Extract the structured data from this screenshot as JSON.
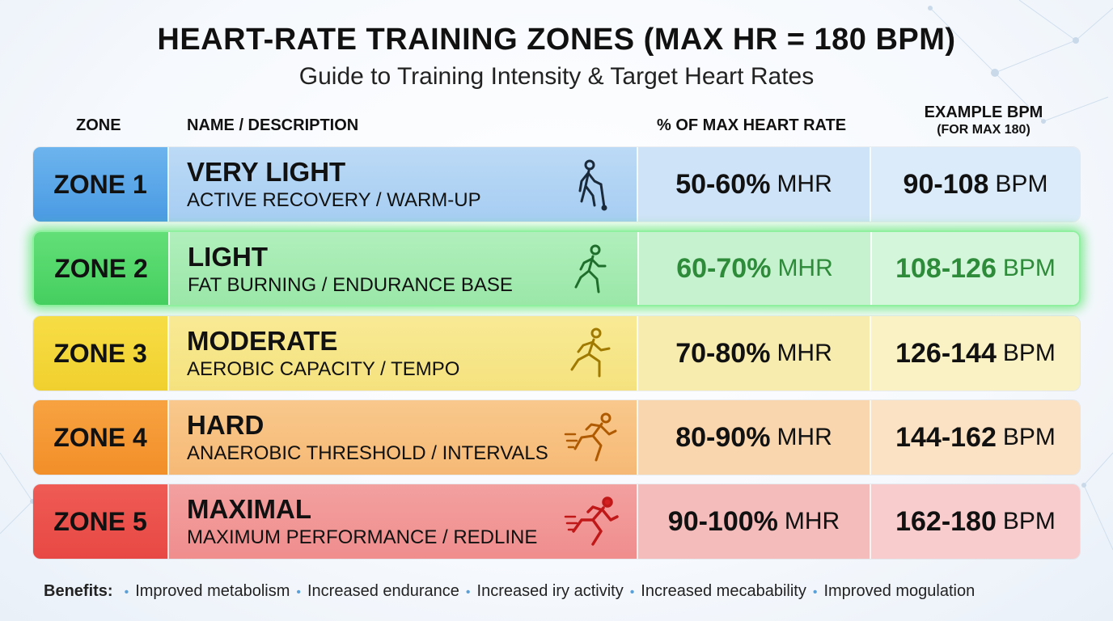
{
  "header": {
    "title": "HEART-RATE TRAINING ZONES (MAX HR = 180 BPM)",
    "subtitle": "Guide to Training Intensity & Target Heart Rates"
  },
  "columns": {
    "zone": "ZONE",
    "name": "NAME / DESCRIPTION",
    "pct": "% OF MAX HEART RATE",
    "bpm": "EXAMPLE BPM",
    "bpm_sub": "(FOR MAX 180)"
  },
  "rows": [
    {
      "zone": "ZONE 1",
      "name": "VERY LIGHT",
      "desc": "ACTIVE RECOVERY / WARM-UP",
      "pct": "50-60%",
      "pct_unit": "MHR",
      "bpm": "90-108",
      "bpm_unit": "BPM",
      "icon": "walking-person-icon",
      "color": "#4a9ae3"
    },
    {
      "zone": "ZONE 2",
      "name": "LIGHT",
      "desc": "FAT BURNING / ENDURANCE BASE",
      "pct": "60-70%",
      "pct_unit": "MHR",
      "bpm": "108-126",
      "bpm_unit": "BPM",
      "icon": "jogging-person-icon",
      "color": "#45cf5f",
      "highlighted": true
    },
    {
      "zone": "ZONE 3",
      "name": "MODERATE",
      "desc": "AEROBIC CAPACITY / TEMPO",
      "pct": "70-80%",
      "pct_unit": "MHR",
      "bpm": "126-144",
      "bpm_unit": "BPM",
      "icon": "running-person-icon",
      "color": "#f0d02e"
    },
    {
      "zone": "ZONE 4",
      "name": "HARD",
      "desc": "ANAEROBIC THRESHOLD / INTERVALS",
      "pct": "80-90%",
      "pct_unit": "MHR",
      "bpm": "144-162",
      "bpm_unit": "BPM",
      "icon": "fast-running-person-icon",
      "color": "#f28f29"
    },
    {
      "zone": "ZONE 5",
      "name": "MAXIMAL",
      "desc": "MAXIMUM PERFORMANCE / REDLINE",
      "pct": "90-100%",
      "pct_unit": "MHR",
      "bpm": "162-180",
      "bpm_unit": "BPM",
      "icon": "sprinting-person-icon",
      "color": "#e84843"
    }
  ],
  "benefits": {
    "label": "Benefits:",
    "items": [
      "Improved metabolism",
      "Increased endurance",
      "Increased iry activity",
      "Increased mecabability",
      "Improved mogulation"
    ]
  }
}
